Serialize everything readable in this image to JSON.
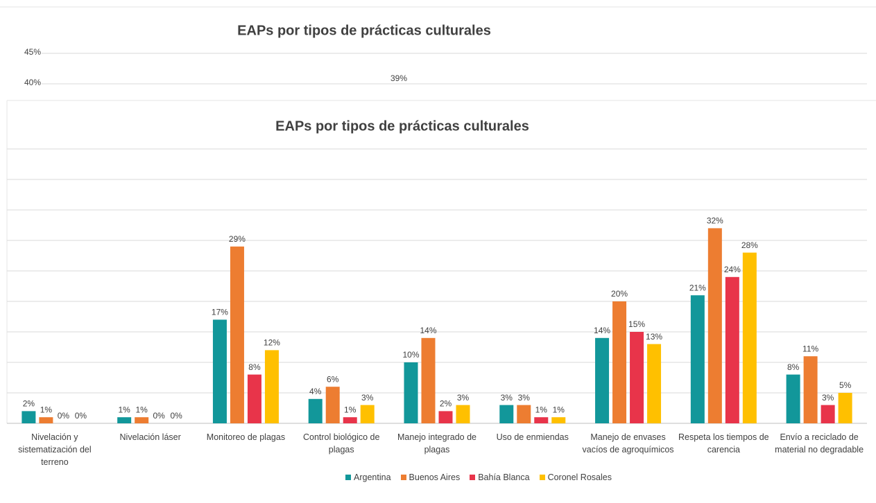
{
  "chart_data": [
    {
      "type": "bar",
      "title": "EAPs por tipos de prácticas culturales",
      "ylim": [
        40,
        45
      ],
      "yticks": [
        {
          "value": 45,
          "label": "45%"
        },
        {
          "value": 40,
          "label": "40%"
        }
      ],
      "annotations": [
        "39%"
      ],
      "grid": true
    },
    {
      "type": "bar",
      "title": "EAPs por tipos de prácticas culturales",
      "categories": [
        "Nivelación y sistematización del terreno",
        "Nivelación láser",
        "Monitoreo de plagas",
        "Control biológico de plagas",
        "Manejo integrado de plagas",
        "Uso de enmiendas",
        "Manejo de envases vacíos de agroquímicos",
        "Respeta los tiempos de carencia",
        "Envío a reciclado de material no degradable"
      ],
      "series": [
        {
          "name": "Argentina",
          "color": "#12979a",
          "values": [
            2,
            1,
            17,
            4,
            10,
            3,
            14,
            21,
            8
          ],
          "value_labels": [
            "2%",
            "1%",
            "17%",
            "4%",
            "10%",
            "3%",
            "14%",
            "21%",
            "8%"
          ]
        },
        {
          "name": "Buenos Aires",
          "color": "#ed7d31",
          "values": [
            1,
            1,
            29,
            6,
            14,
            3,
            20,
            32,
            11
          ],
          "value_labels": [
            "1%",
            "1%",
            "29%",
            "6%",
            "14%",
            "3%",
            "20%",
            "32%",
            "11%"
          ]
        },
        {
          "name": "Bahía Blanca",
          "color": "#e8344a",
          "values": [
            0,
            0,
            8,
            1,
            2,
            1,
            15,
            24,
            3
          ],
          "value_labels": [
            "0%",
            "0%",
            "8%",
            "1%",
            "2%",
            "1%",
            "15%",
            "24%",
            "3%"
          ]
        },
        {
          "name": "Coronel Rosales",
          "color": "#ffc000",
          "values": [
            0,
            0,
            12,
            3,
            3,
            1,
            13,
            28,
            5
          ],
          "value_labels": [
            "0%",
            "0%",
            "12%",
            "3%",
            "3%",
            "1%",
            "13%",
            "28%",
            "5%"
          ]
        }
      ],
      "ylim": [
        0,
        45
      ],
      "yticks": [
        0,
        5,
        10,
        15,
        20,
        25,
        30,
        35,
        40,
        45
      ],
      "show_tick_labels": false,
      "grid": true,
      "legend": "bottom"
    }
  ]
}
